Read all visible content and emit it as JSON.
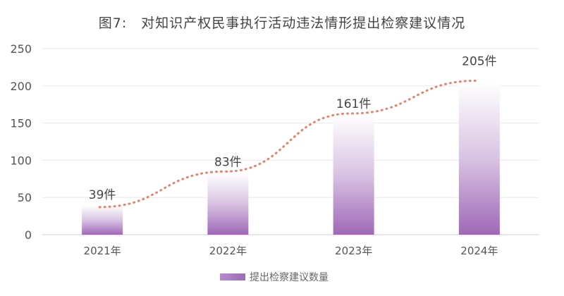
{
  "chart_data": {
    "type": "bar",
    "title": "图7:　对知识产权民事执行活动违法情形提出检察建议情况",
    "categories": [
      "2021年",
      "2022年",
      "2023年",
      "2024年"
    ],
    "series": [
      {
        "name": "提出检察建议数量",
        "values": [
          39,
          83,
          161,
          205
        ]
      }
    ],
    "data_labels": [
      "39件",
      "83件",
      "161件",
      "205件"
    ],
    "trend_line": {
      "style": "dotted",
      "color": "#e8806a"
    },
    "yticks": [
      0,
      50,
      100,
      150,
      200,
      250
    ],
    "ylim": [
      0,
      250
    ],
    "xlabel": "",
    "ylabel": "",
    "grid": true,
    "legend": "bottom",
    "bar_color": "#a06bb8"
  }
}
